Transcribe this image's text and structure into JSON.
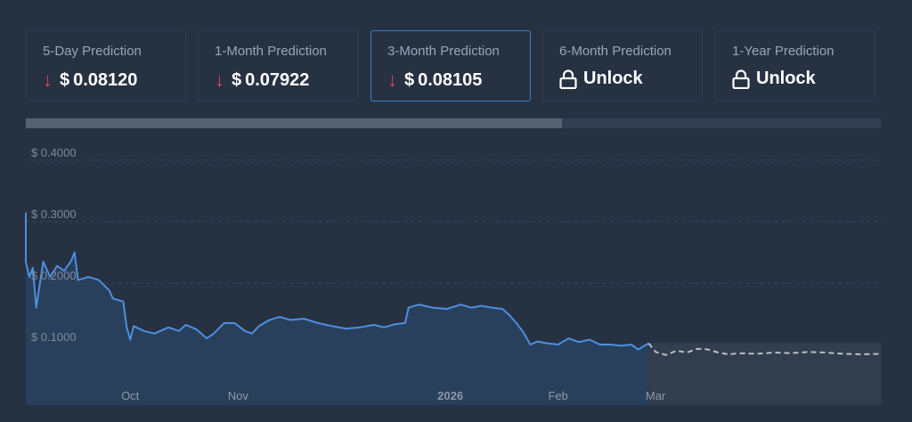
{
  "cards": [
    {
      "label": "5-Day Prediction",
      "value": "$ 0.08120",
      "direction": "down",
      "locked": false,
      "active": false
    },
    {
      "label": "1-Month Prediction",
      "value": "$ 0.07922",
      "direction": "down",
      "locked": false,
      "active": false
    },
    {
      "label": "3-Month Prediction",
      "value": "$ 0.08105",
      "direction": "down",
      "locked": false,
      "active": true
    },
    {
      "label": "6-Month Prediction",
      "value": "Unlock",
      "locked": true,
      "active": false
    },
    {
      "label": "1-Year Prediction",
      "value": "Unlock",
      "locked": true,
      "active": false
    }
  ],
  "colors": {
    "history_line": "#4d8fe0",
    "forecast_line": "#b9bec6",
    "down_arrow": "#e0465a",
    "active_border": "#3d7fc4"
  },
  "chart_data": {
    "type": "line",
    "title": "",
    "xlabel": "",
    "ylabel": "",
    "ylim": [
      0,
      0.4
    ],
    "y_ticks": [
      {
        "value": 0.1,
        "label": "$ 0.1000"
      },
      {
        "value": 0.2,
        "label": "$ 0.2000"
      },
      {
        "value": 0.3,
        "label": "$ 0.3000"
      },
      {
        "value": 0.4,
        "label": "$ 0.4000"
      }
    ],
    "x_domain": [
      "2025-09-01",
      "2026-05-05"
    ],
    "x_ticks": [
      {
        "date": "2025-10-01",
        "label": "Oct",
        "bold": false
      },
      {
        "date": "2025-11-01",
        "label": "Nov",
        "bold": false
      },
      {
        "date": "2026-01-01",
        "label": "2026",
        "bold": true
      },
      {
        "date": "2026-02-01",
        "label": "Feb",
        "bold": false
      },
      {
        "date": "2026-03-01",
        "label": "Mar",
        "bold": false
      }
    ],
    "grid": true,
    "series": [
      {
        "kind": "history",
        "points": [
          [
            "2025-09-01",
            0.315
          ],
          [
            "2025-09-01",
            0.235
          ],
          [
            "2025-09-02",
            0.21
          ],
          [
            "2025-09-03",
            0.225
          ],
          [
            "2025-09-04",
            0.16
          ],
          [
            "2025-09-06",
            0.235
          ],
          [
            "2025-09-08",
            0.21
          ],
          [
            "2025-09-10",
            0.228
          ],
          [
            "2025-09-12",
            0.22
          ],
          [
            "2025-09-14",
            0.236
          ],
          [
            "2025-09-15",
            0.25
          ],
          [
            "2025-09-16",
            0.205
          ],
          [
            "2025-09-19",
            0.21
          ],
          [
            "2025-09-22",
            0.205
          ],
          [
            "2025-09-25",
            0.188
          ],
          [
            "2025-09-26",
            0.175
          ],
          [
            "2025-09-29",
            0.17
          ],
          [
            "2025-09-30",
            0.128
          ],
          [
            "2025-10-01",
            0.108
          ],
          [
            "2025-10-02",
            0.13
          ],
          [
            "2025-10-05",
            0.122
          ],
          [
            "2025-10-08",
            0.118
          ],
          [
            "2025-10-12",
            0.128
          ],
          [
            "2025-10-15",
            0.122
          ],
          [
            "2025-10-17",
            0.132
          ],
          [
            "2025-10-20",
            0.125
          ],
          [
            "2025-10-23",
            0.11
          ],
          [
            "2025-10-25",
            0.118
          ],
          [
            "2025-10-28",
            0.135
          ],
          [
            "2025-10-31",
            0.135
          ],
          [
            "2025-11-03",
            0.122
          ],
          [
            "2025-11-05",
            0.118
          ],
          [
            "2025-11-07",
            0.13
          ],
          [
            "2025-11-10",
            0.14
          ],
          [
            "2025-11-13",
            0.145
          ],
          [
            "2025-11-16",
            0.14
          ],
          [
            "2025-11-20",
            0.142
          ],
          [
            "2025-11-24",
            0.135
          ],
          [
            "2025-11-28",
            0.13
          ],
          [
            "2025-12-02",
            0.126
          ],
          [
            "2025-12-06",
            0.128
          ],
          [
            "2025-12-10",
            0.132
          ],
          [
            "2025-12-13",
            0.128
          ],
          [
            "2025-12-16",
            0.133
          ],
          [
            "2025-12-19",
            0.135
          ],
          [
            "2025-12-20",
            0.16
          ],
          [
            "2025-12-23",
            0.165
          ],
          [
            "2025-12-27",
            0.16
          ],
          [
            "2025-12-31",
            0.158
          ],
          [
            "2026-01-04",
            0.165
          ],
          [
            "2026-01-07",
            0.16
          ],
          [
            "2026-01-10",
            0.163
          ],
          [
            "2026-01-13",
            0.16
          ],
          [
            "2026-01-16",
            0.158
          ],
          [
            "2026-01-18",
            0.148
          ],
          [
            "2026-01-20",
            0.135
          ],
          [
            "2026-01-22",
            0.12
          ],
          [
            "2026-01-24",
            0.1
          ],
          [
            "2026-01-26",
            0.105
          ],
          [
            "2026-01-29",
            0.102
          ],
          [
            "2026-02-01",
            0.1
          ],
          [
            "2026-02-04",
            0.11
          ],
          [
            "2026-02-07",
            0.104
          ],
          [
            "2026-02-10",
            0.108
          ],
          [
            "2026-02-13",
            0.1
          ],
          [
            "2026-02-16",
            0.1
          ],
          [
            "2026-02-19",
            0.098
          ],
          [
            "2026-02-22",
            0.1
          ],
          [
            "2026-02-24",
            0.092
          ],
          [
            "2026-02-27",
            0.102
          ]
        ]
      },
      {
        "kind": "forecast",
        "points": [
          [
            "2026-02-27",
            0.102
          ],
          [
            "2026-03-01",
            0.088
          ],
          [
            "2026-03-04",
            0.083
          ],
          [
            "2026-03-07",
            0.09
          ],
          [
            "2026-03-10",
            0.087
          ],
          [
            "2026-03-13",
            0.093
          ],
          [
            "2026-03-16",
            0.092
          ],
          [
            "2026-03-19",
            0.087
          ],
          [
            "2026-03-22",
            0.084
          ],
          [
            "2026-03-25",
            0.086
          ],
          [
            "2026-03-30",
            0.085
          ],
          [
            "2026-04-04",
            0.087
          ],
          [
            "2026-04-09",
            0.086
          ],
          [
            "2026-04-14",
            0.088
          ],
          [
            "2026-04-19",
            0.087
          ],
          [
            "2026-04-24",
            0.085
          ],
          [
            "2026-04-29",
            0.084
          ],
          [
            "2026-05-05",
            0.085
          ]
        ]
      }
    ]
  }
}
